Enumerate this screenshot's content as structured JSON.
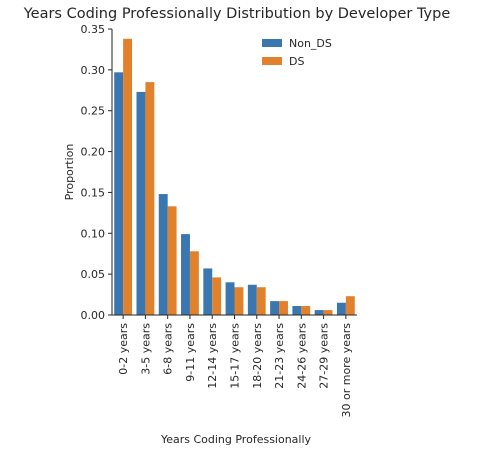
{
  "chart_data": {
    "type": "bar",
    "title": "Years Coding Professionally Distribution by Developer Type",
    "xlabel": "Years Coding Professionally",
    "ylabel": "Proportion",
    "ylim": [
      0,
      0.35
    ],
    "yticks": [
      "0.00",
      "0.05",
      "0.10",
      "0.15",
      "0.20",
      "0.25",
      "0.30",
      "0.35"
    ],
    "categories": [
      "0-2 years",
      "3-5 years",
      "6-8 years",
      "9-11 years",
      "12-14 years",
      "15-17 years",
      "18-20 years",
      "21-23 years",
      "24-26 years",
      "27-29 years",
      "30 or more years"
    ],
    "series": [
      {
        "name": "Non_DS",
        "color": "#3a76af",
        "values": [
          0.297,
          0.273,
          0.148,
          0.099,
          0.057,
          0.04,
          0.037,
          0.017,
          0.011,
          0.006,
          0.015
        ]
      },
      {
        "name": "DS",
        "color": "#e1812c",
        "values": [
          0.338,
          0.285,
          0.133,
          0.078,
          0.046,
          0.034,
          0.034,
          0.017,
          0.011,
          0.006,
          0.023
        ]
      }
    ],
    "legend_position": "top-right",
    "grid": false
  }
}
